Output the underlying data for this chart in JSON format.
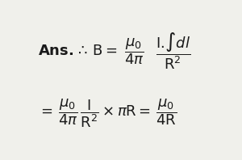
{
  "background_color": "#f0f0eb",
  "text_color": "#1a1a1a",
  "fontsize_main": 13,
  "fontsize_formula": 13
}
